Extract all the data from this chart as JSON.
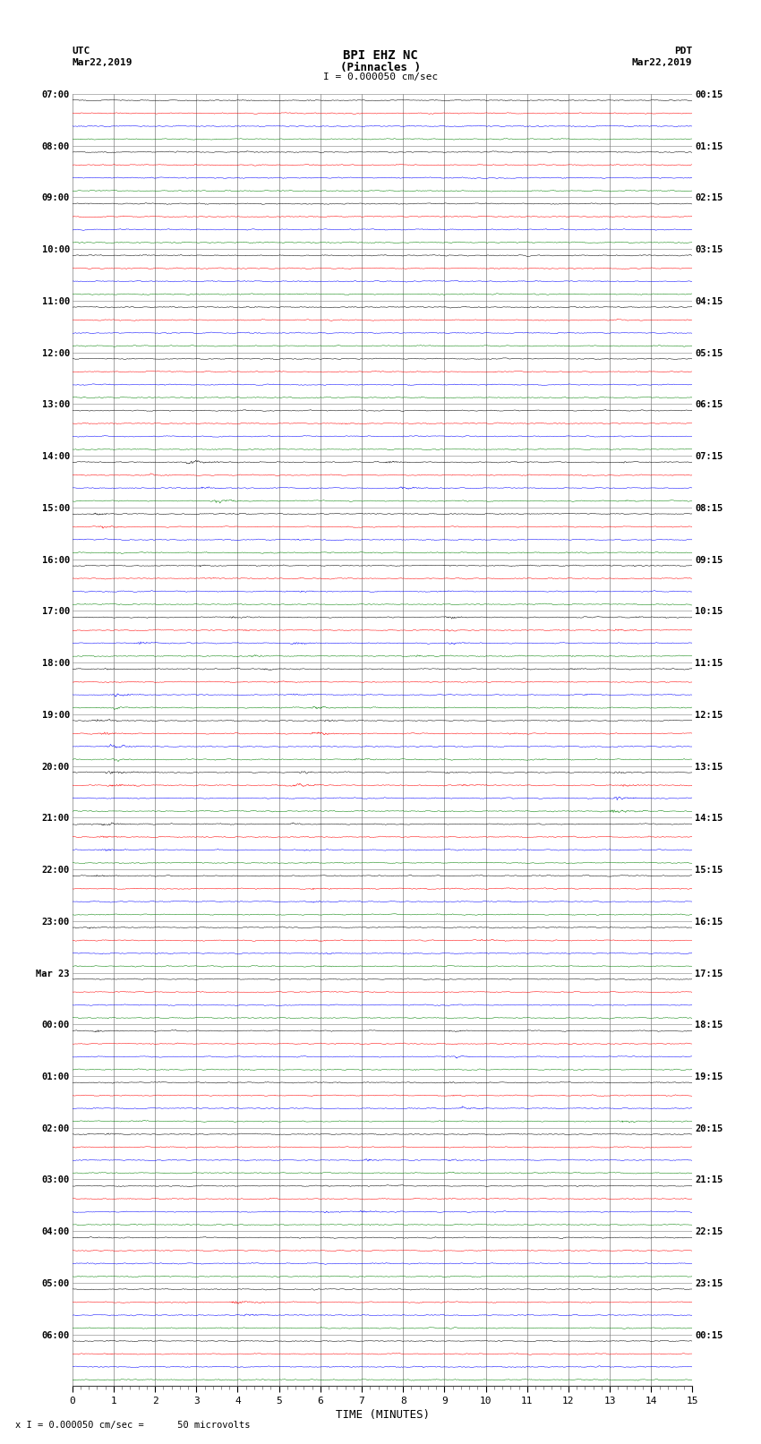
{
  "title_line1": "BPI EHZ NC",
  "title_line2": "(Pinnacles )",
  "scale_text": "I = 0.000050 cm/sec",
  "left_header": "UTC",
  "left_date": "Mar22,2019",
  "right_header": "PDT",
  "right_date": "Mar22,2019",
  "bottom_label": "TIME (MINUTES)",
  "bottom_note": "x I = 0.000050 cm/sec =      50 microvolts",
  "utc_labels": [
    "07:00",
    "08:00",
    "09:00",
    "10:00",
    "11:00",
    "12:00",
    "13:00",
    "14:00",
    "15:00",
    "16:00",
    "17:00",
    "18:00",
    "19:00",
    "20:00",
    "21:00",
    "22:00",
    "23:00",
    "Mar 23",
    "00:00",
    "01:00",
    "02:00",
    "03:00",
    "04:00",
    "05:00",
    "06:00"
  ],
  "pdt_labels": [
    "00:15",
    "01:15",
    "02:15",
    "03:15",
    "04:15",
    "05:15",
    "06:15",
    "07:15",
    "08:15",
    "09:15",
    "10:15",
    "11:15",
    "12:15",
    "13:15",
    "14:15",
    "15:15",
    "16:15",
    "17:15",
    "18:15",
    "19:15",
    "20:15",
    "21:15",
    "22:15",
    "23:15",
    "00:15"
  ],
  "n_rows": 25,
  "traces_per_row": 4,
  "trace_colors": [
    "black",
    "red",
    "blue",
    "green"
  ],
  "bg_color": "#ffffff",
  "plot_bg": "#ffffff",
  "fig_width": 8.5,
  "fig_height": 16.13,
  "dpi": 100,
  "xmin": 0,
  "xmax": 15,
  "x_ticks": [
    0,
    1,
    2,
    3,
    4,
    5,
    6,
    7,
    8,
    9,
    10,
    11,
    12,
    13,
    14,
    15
  ]
}
